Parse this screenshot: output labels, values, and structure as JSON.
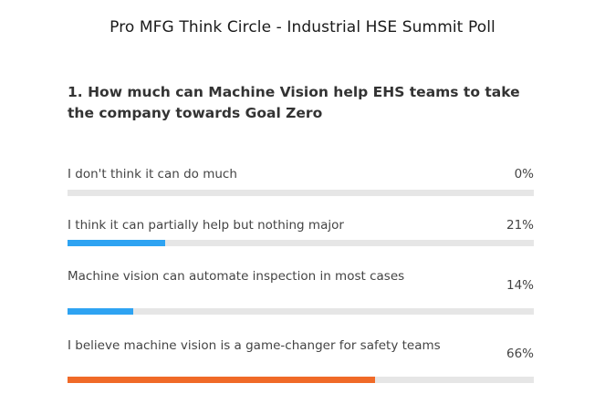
{
  "poll": {
    "title": "Pro MFG Think Circle - Industrial HSE Summit Poll",
    "question": "1. How much can Machine Vision help EHS teams to take the company towards Goal Zero",
    "options": [
      {
        "label": "I don't think it can do much",
        "percent_text": "0%",
        "percent": 0,
        "color": "#2ea3f2"
      },
      {
        "label": "I think it can partially help but nothing major",
        "percent_text": "21%",
        "percent": 21,
        "color": "#2ea3f2"
      },
      {
        "label": "Machine vision can automate inspection in most cases",
        "percent_text": "14%",
        "percent": 14,
        "color": "#2ea3f2"
      },
      {
        "label": "I believe machine vision is a game-changer for safety teams",
        "percent_text": "66%",
        "percent": 66,
        "color": "#f06a28"
      }
    ]
  }
}
